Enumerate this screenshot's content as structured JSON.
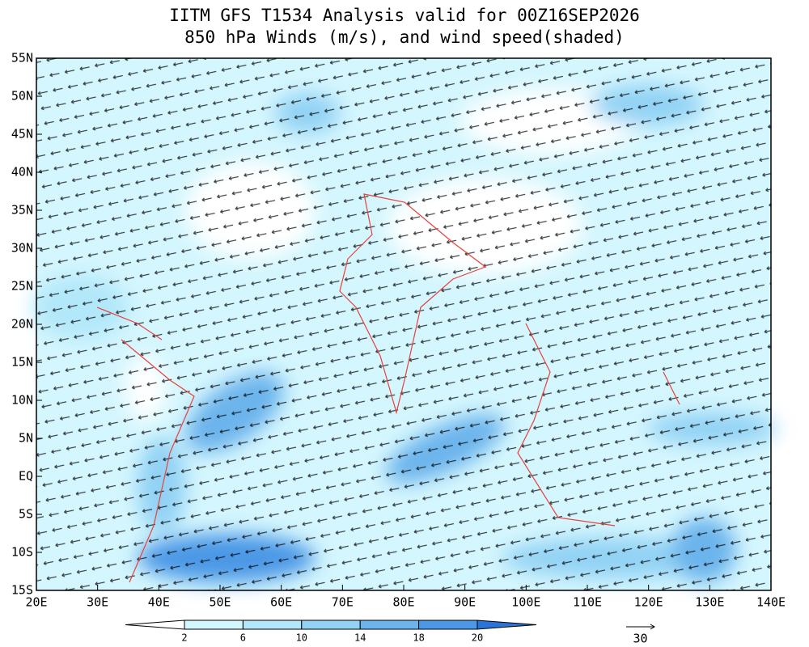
{
  "chart_data": {
    "type": "map",
    "title": "IITM GFS T1534 Analysis valid for 00Z16SEP2026",
    "subtitle": "850 hPa Winds (m/s), and wind speed(shaded)",
    "xlim": [
      20,
      140
    ],
    "ylim": [
      -15,
      55
    ],
    "xticks": [
      {
        "value": 20,
        "label": "20E"
      },
      {
        "value": 30,
        "label": "30E"
      },
      {
        "value": 40,
        "label": "40E"
      },
      {
        "value": 50,
        "label": "50E"
      },
      {
        "value": 60,
        "label": "60E"
      },
      {
        "value": 70,
        "label": "70E"
      },
      {
        "value": 80,
        "label": "80E"
      },
      {
        "value": 90,
        "label": "90E"
      },
      {
        "value": 100,
        "label": "100E"
      },
      {
        "value": 110,
        "label": "110E"
      },
      {
        "value": 120,
        "label": "120E"
      },
      {
        "value": 130,
        "label": "130E"
      },
      {
        "value": 140,
        "label": "140E"
      }
    ],
    "yticks": [
      {
        "value": 55,
        "label": "55N"
      },
      {
        "value": 50,
        "label": "50N"
      },
      {
        "value": 45,
        "label": "45N"
      },
      {
        "value": 40,
        "label": "40N"
      },
      {
        "value": 35,
        "label": "35N"
      },
      {
        "value": 30,
        "label": "30N"
      },
      {
        "value": 25,
        "label": "25N"
      },
      {
        "value": 20,
        "label": "20N"
      },
      {
        "value": 15,
        "label": "15N"
      },
      {
        "value": 10,
        "label": "10N"
      },
      {
        "value": 5,
        "label": "5N"
      },
      {
        "value": 0,
        "label": "EQ"
      },
      {
        "value": -5,
        "label": "5S"
      },
      {
        "value": -10,
        "label": "10S"
      },
      {
        "value": -15,
        "label": "15S"
      }
    ],
    "colorbar": {
      "levels": [
        2,
        6,
        10,
        14,
        18,
        20
      ],
      "colors": [
        "#ffffff",
        "#d4f6fe",
        "#b2e8fa",
        "#92d2f4",
        "#6cb4ec",
        "#4c98e6",
        "#2a74d8"
      ]
    },
    "reference_vector": 30
  }
}
